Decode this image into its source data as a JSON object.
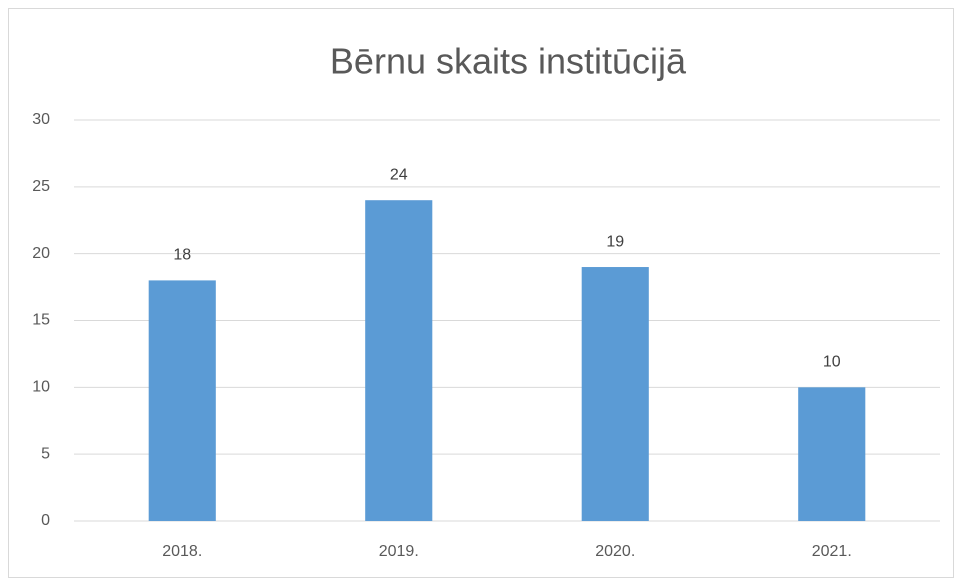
{
  "chart_data": {
    "type": "bar",
    "title": "Bērnu skaits institūcijā",
    "categories": [
      "2018.",
      "2019.",
      "2020.",
      "2021."
    ],
    "values": [
      18,
      24,
      19,
      10
    ],
    "color": "#5b9bd5",
    "ylim": [
      0,
      30
    ],
    "yticks": [
      0,
      5,
      10,
      15,
      20,
      25,
      30
    ],
    "grid": true
  }
}
